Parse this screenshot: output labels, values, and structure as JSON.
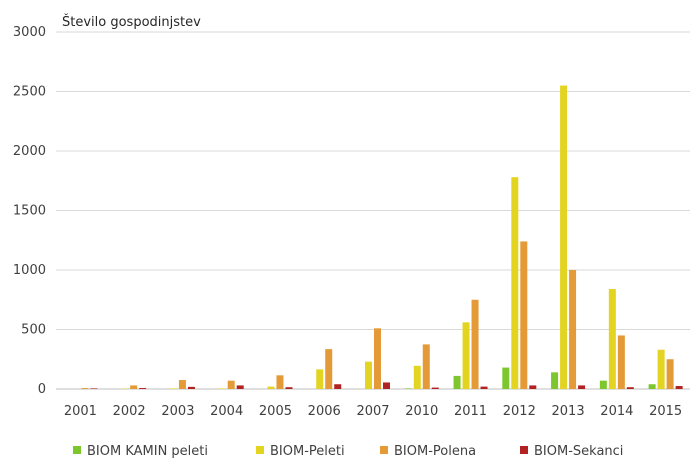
{
  "chart_data": {
    "type": "bar",
    "ylabel": "Število gospodinjstev",
    "xlabel": "",
    "ylim": [
      0,
      3000
    ],
    "yticks": [
      0,
      500,
      1000,
      1500,
      2000,
      2500,
      3000
    ],
    "grid": true,
    "legend_position": "bottom",
    "categories": [
      "2001",
      "2002",
      "2003",
      "2004",
      "2005",
      "2006",
      "2007",
      "2010",
      "2011",
      "2012",
      "2013",
      "2014",
      "2015"
    ],
    "series": [
      {
        "name": "BIOM KAMIN peleti",
        "color": "#7dc62e",
        "values": [
          0,
          0,
          0,
          0,
          0,
          0,
          0,
          5,
          110,
          180,
          140,
          70,
          40
        ]
      },
      {
        "name": "BIOM-Peleti",
        "color": "#e4d422",
        "values": [
          0,
          3,
          5,
          5,
          20,
          165,
          230,
          195,
          560,
          1780,
          2550,
          840,
          330
        ]
      },
      {
        "name": "BIOM-Polena",
        "color": "#e49a37",
        "values": [
          8,
          30,
          75,
          70,
          115,
          335,
          510,
          375,
          750,
          1240,
          1000,
          450,
          250
        ]
      },
      {
        "name": "BIOM-Sekanci",
        "color": "#b22222",
        "values": [
          5,
          8,
          18,
          30,
          15,
          40,
          55,
          12,
          20,
          30,
          30,
          15,
          25
        ]
      }
    ]
  }
}
